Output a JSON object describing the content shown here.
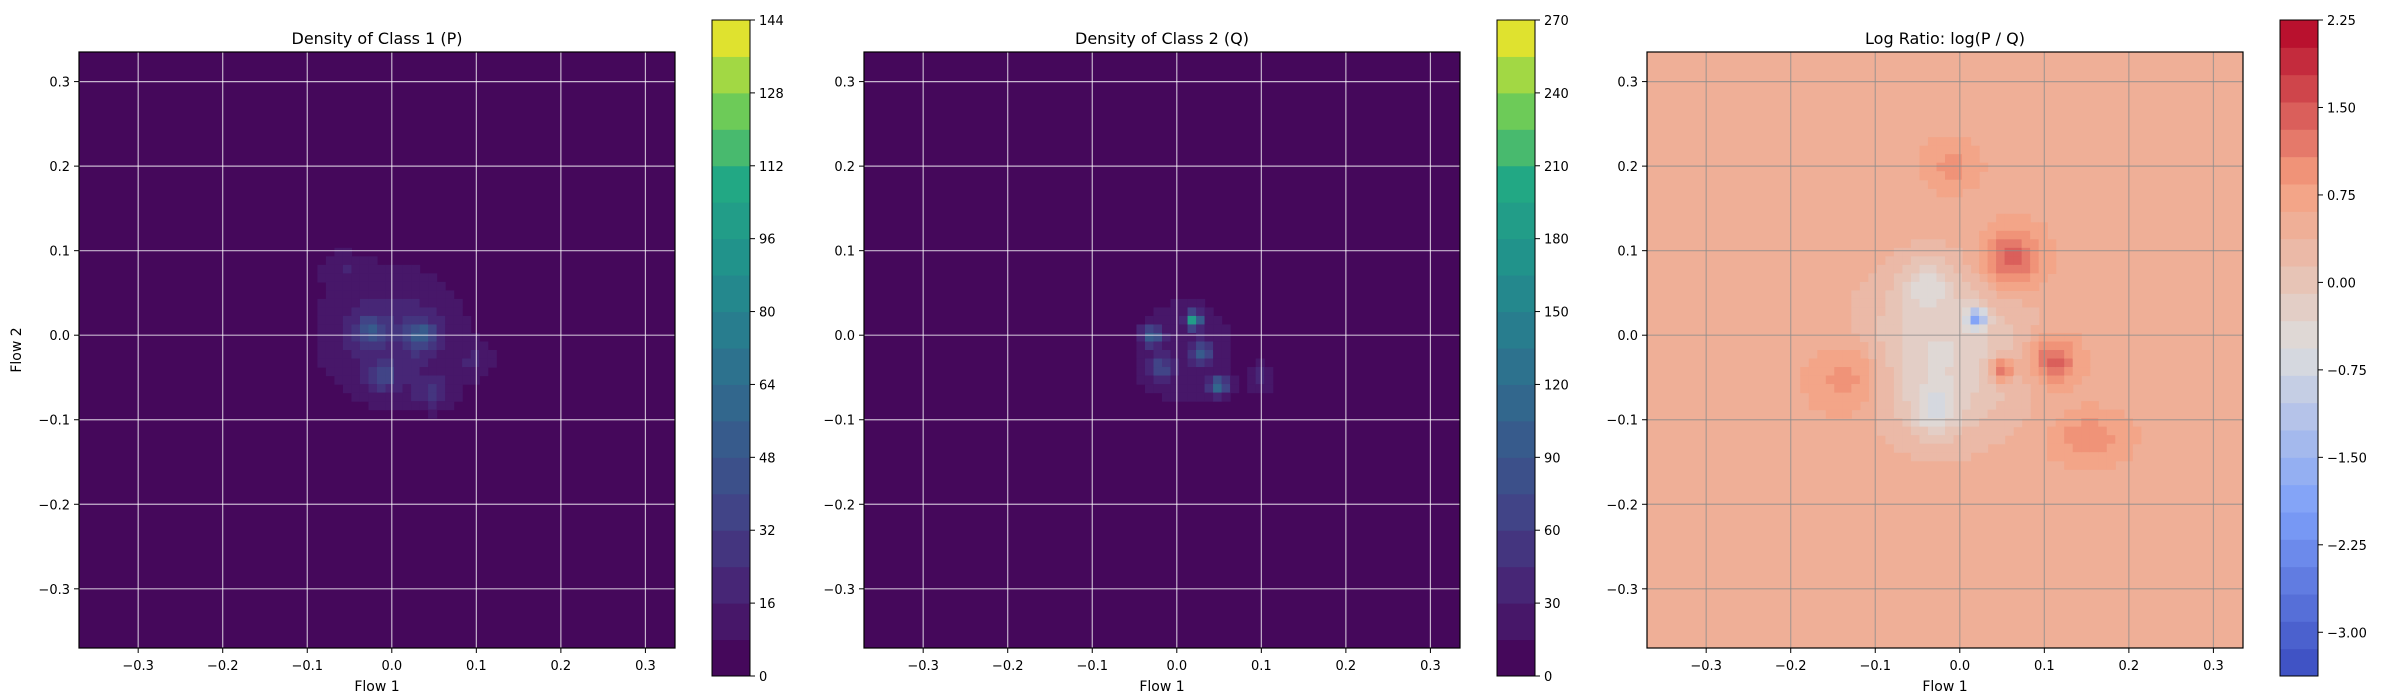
{
  "chart_data": [
    {
      "type": "heatmap",
      "title": "Density of Class 1 (P)",
      "xlabel": "Flow 1",
      "ylabel": "Flow 2",
      "xlim": [
        -0.37,
        0.335
      ],
      "ylim": [
        -0.37,
        0.335
      ],
      "xticks": [
        -0.3,
        -0.2,
        -0.1,
        0.0,
        0.1,
        0.2,
        0.3
      ],
      "yticks": [
        -0.3,
        -0.2,
        -0.1,
        0.0,
        0.1,
        0.2,
        0.3
      ],
      "grid": true,
      "colormap": "viridis",
      "colorbar": {
        "min": 0,
        "max": 144,
        "ticks": [
          0,
          16,
          32,
          48,
          64,
          80,
          96,
          112,
          128,
          144
        ],
        "levels": 18
      },
      "background_value": 0,
      "blobs": [
        {
          "x": 0.0,
          "y": 0.0,
          "sx": 0.065,
          "sy": 0.06,
          "v": 22
        },
        {
          "x": 0.035,
          "y": 0.0,
          "sx": 0.012,
          "sy": 0.012,
          "v": 38
        },
        {
          "x": -0.025,
          "y": 0.005,
          "sx": 0.012,
          "sy": 0.012,
          "v": 30
        },
        {
          "x": -0.01,
          "y": -0.05,
          "sx": 0.012,
          "sy": 0.012,
          "v": 24
        },
        {
          "x": 0.05,
          "y": -0.07,
          "sx": 0.015,
          "sy": 0.012,
          "v": 20
        },
        {
          "x": 0.1,
          "y": -0.03,
          "sx": 0.015,
          "sy": 0.015,
          "v": 12
        },
        {
          "x": -0.06,
          "y": 0.08,
          "sx": 0.02,
          "sy": 0.015,
          "v": 10
        }
      ]
    },
    {
      "type": "heatmap",
      "title": "Density of Class 2 (Q)",
      "xlabel": "Flow 1",
      "ylabel": "",
      "xlim": [
        -0.37,
        0.335
      ],
      "ylim": [
        -0.37,
        0.335
      ],
      "xticks": [
        -0.3,
        -0.2,
        -0.1,
        0.0,
        0.1,
        0.2,
        0.3
      ],
      "yticks": [
        -0.3,
        -0.2,
        -0.1,
        0.0,
        0.1,
        0.2,
        0.3
      ],
      "grid": true,
      "colormap": "viridis",
      "colorbar": {
        "min": 0,
        "max": 270,
        "ticks": [
          0,
          30,
          60,
          90,
          120,
          150,
          180,
          210,
          240,
          270
        ],
        "levels": 18
      },
      "background_value": 0,
      "blobs": [
        {
          "x": 0.01,
          "y": -0.02,
          "sx": 0.05,
          "sy": 0.055,
          "v": 28
        },
        {
          "x": 0.02,
          "y": 0.018,
          "sx": 0.006,
          "sy": 0.006,
          "v": 175
        },
        {
          "x": -0.03,
          "y": 0.0,
          "sx": 0.008,
          "sy": 0.008,
          "v": 90
        },
        {
          "x": 0.05,
          "y": -0.06,
          "sx": 0.008,
          "sy": 0.008,
          "v": 100
        },
        {
          "x": 0.03,
          "y": -0.02,
          "sx": 0.008,
          "sy": 0.008,
          "v": 70
        },
        {
          "x": -0.02,
          "y": -0.04,
          "sx": 0.01,
          "sy": 0.01,
          "v": 55
        },
        {
          "x": 0.1,
          "y": -0.05,
          "sx": 0.012,
          "sy": 0.012,
          "v": 30
        }
      ]
    },
    {
      "type": "heatmap",
      "title": "Log Ratio: log(P / Q)",
      "xlabel": "Flow 1",
      "ylabel": "",
      "xlim": [
        -0.37,
        0.335
      ],
      "ylim": [
        -0.37,
        0.335
      ],
      "xticks": [
        -0.3,
        -0.2,
        -0.1,
        0.0,
        0.1,
        0.2,
        0.3
      ],
      "yticks": [
        -0.3,
        -0.2,
        -0.1,
        0.0,
        0.1,
        0.2,
        0.3
      ],
      "grid": true,
      "colormap": "coolwarm",
      "colorbar": {
        "min": -3.375,
        "max": 2.25,
        "ticks": [
          -3.0,
          -2.25,
          -1.5,
          -0.75,
          0.0,
          0.75,
          1.5,
          2.25
        ],
        "tick_labels": [
          "−3.00",
          "−2.25",
          "−1.50",
          "−0.75",
          "0.00",
          "0.75",
          "1.50",
          "2.25"
        ],
        "levels": 24
      },
      "background_value": 0.55,
      "blobs": [
        {
          "x": -0.02,
          "y": -0.02,
          "sx": 0.07,
          "sy": 0.07,
          "v": -0.9
        },
        {
          "x": -0.04,
          "y": 0.06,
          "sx": 0.02,
          "sy": 0.02,
          "v": -0.6
        },
        {
          "x": -0.03,
          "y": -0.09,
          "sx": 0.02,
          "sy": 0.02,
          "v": -0.7
        },
        {
          "x": 0.02,
          "y": 0.02,
          "sx": 0.008,
          "sy": 0.008,
          "v": -2.0
        },
        {
          "x": 0.06,
          "y": 0.09,
          "sx": 0.025,
          "sy": 0.025,
          "v": 1.0
        },
        {
          "x": 0.11,
          "y": -0.03,
          "sx": 0.02,
          "sy": 0.02,
          "v": 1.0
        },
        {
          "x": -0.13,
          "y": -0.05,
          "sx": 0.03,
          "sy": 0.03,
          "v": 0.6
        },
        {
          "x": 0.15,
          "y": -0.12,
          "sx": 0.03,
          "sy": 0.02,
          "v": 0.5
        },
        {
          "x": 0.05,
          "y": -0.04,
          "sx": 0.01,
          "sy": 0.01,
          "v": 1.3
        },
        {
          "x": -0.01,
          "y": 0.2,
          "sx": 0.02,
          "sy": 0.02,
          "v": 0.4
        }
      ]
    }
  ]
}
